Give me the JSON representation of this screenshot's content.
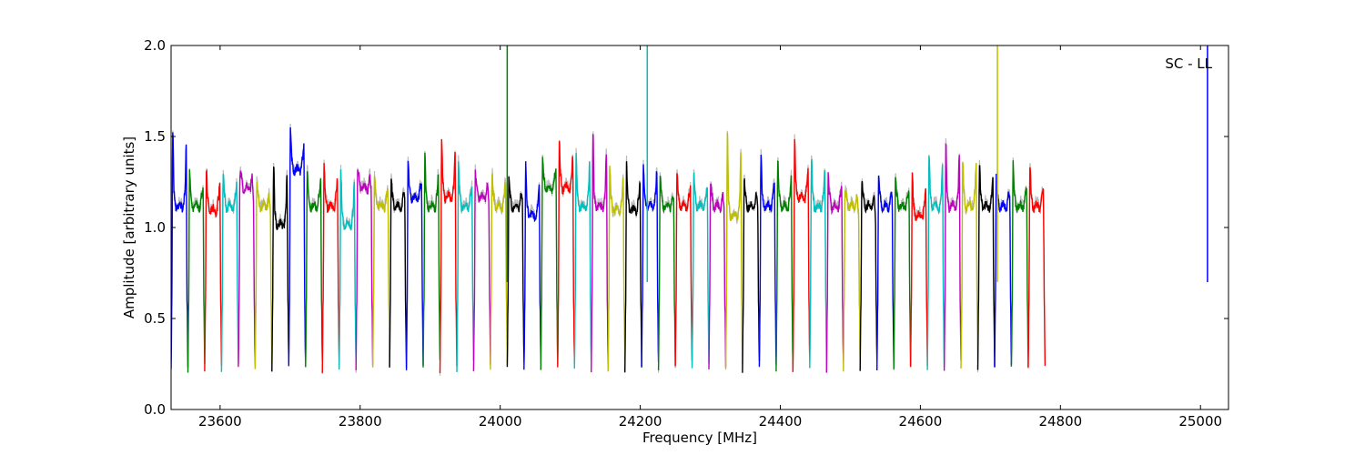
{
  "chart_data": {
    "type": "line",
    "title": "",
    "annotation": "SC - LL",
    "xlabel": "Frequency [MHz]",
    "ylabel": "Amplitude [arbitrary units]",
    "xlim": [
      23530,
      25040
    ],
    "ylim": [
      0.0,
      2.0
    ],
    "x_ticks": [
      23600,
      23800,
      24000,
      24200,
      24400,
      24600,
      24800,
      25000
    ],
    "x_tick_labels": [
      "23600",
      "23800",
      "24000",
      "24200",
      "24400",
      "24600",
      "24800",
      "25000"
    ],
    "y_ticks": [
      0.0,
      0.5,
      1.0,
      1.5,
      2.0
    ],
    "y_tick_labels": [
      "0.0",
      "0.5",
      "1.0",
      "1.5",
      "2.0"
    ],
    "grid": false,
    "legend": "none",
    "color_cycle": [
      "#0000ff",
      "#008000",
      "#ff0000",
      "#00bfbf",
      "#bf00bf",
      "#bfbf00",
      "#000000"
    ],
    "background_trace_color": "#bbbbbb",
    "channel_width_mhz": 24,
    "channel_start_mhz": 23530,
    "channel_peaks": [
      [
        1.54,
        1.1
      ],
      [
        1.32,
        1.1
      ],
      [
        1.32,
        1.08
      ],
      [
        1.3,
        1.1
      ],
      [
        1.3,
        1.2
      ],
      [
        1.26,
        1.1
      ],
      [
        1.35,
        1.0
      ],
      [
        1.54,
        1.3
      ],
      [
        1.32,
        1.1
      ],
      [
        1.35,
        1.1
      ],
      [
        1.3,
        1.0
      ],
      [
        1.32,
        1.2
      ],
      [
        1.3,
        1.1
      ],
      [
        1.25,
        1.1
      ],
      [
        1.38,
        1.15
      ],
      [
        1.4,
        1.1
      ],
      [
        1.47,
        1.15
      ],
      [
        1.36,
        1.1
      ],
      [
        1.3,
        1.15
      ],
      [
        1.3,
        1.1
      ],
      [
        1.26,
        1.1
      ],
      [
        1.35,
        1.05
      ],
      [
        1.38,
        1.2
      ],
      [
        1.47,
        1.2
      ],
      [
        1.4,
        1.1
      ],
      [
        1.53,
        1.1
      ],
      [
        1.33,
        1.08
      ],
      [
        1.35,
        1.08
      ],
      [
        1.35,
        1.1
      ],
      [
        1.28,
        1.1
      ],
      [
        1.3,
        1.1
      ],
      [
        1.3,
        1.1
      ],
      [
        1.24,
        1.1
      ],
      [
        1.51,
        1.05
      ],
      [
        1.27,
        1.1
      ],
      [
        1.4,
        1.1
      ],
      [
        1.38,
        1.1
      ],
      [
        1.47,
        1.15
      ],
      [
        1.38,
        1.1
      ],
      [
        1.3,
        1.1
      ],
      [
        1.2,
        1.1
      ],
      [
        1.25,
        1.1
      ],
      [
        1.28,
        1.1
      ],
      [
        1.27,
        1.1
      ],
      [
        1.3,
        1.05
      ],
      [
        1.4,
        1.1
      ],
      [
        1.47,
        1.1
      ],
      [
        1.38,
        1.1
      ],
      [
        1.36,
        1.1
      ],
      [
        1.3,
        1.1
      ],
      [
        1.35,
        1.1
      ],
      [
        1.35,
        1.1
      ]
    ],
    "spikes": [
      {
        "x": 24010,
        "y_top": 2.0,
        "color": "#008000"
      },
      {
        "x": 24210,
        "y_top": 2.0,
        "color": "#00bfbf"
      },
      {
        "x": 24710,
        "y_top": 2.0,
        "color": "#bfbf00"
      },
      {
        "x": 25010,
        "y_top": 2.0,
        "color": "#0000ff"
      }
    ]
  }
}
